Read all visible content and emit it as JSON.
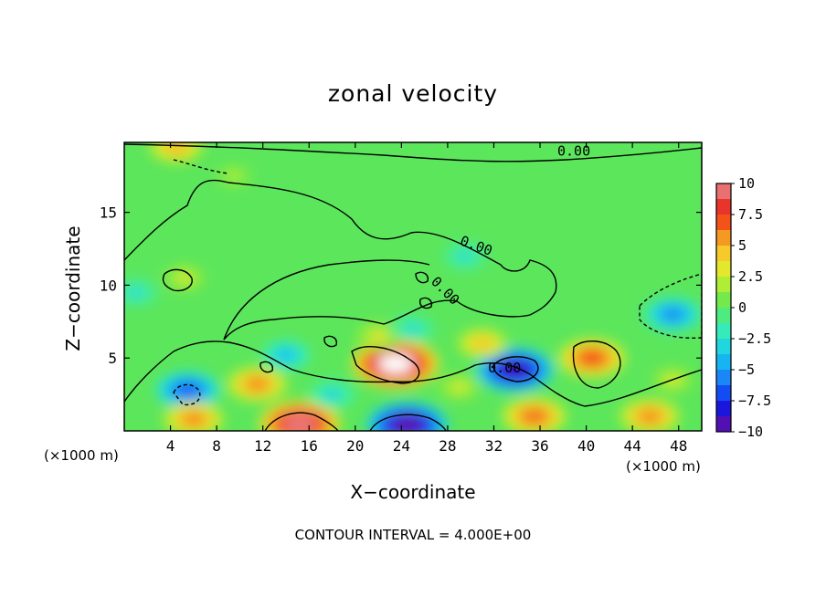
{
  "chart_data": {
    "type": "heatmap",
    "title": "zonal velocity",
    "xlabel": "X−coordinate",
    "ylabel": "Z−coordinate",
    "x_unit": "(×1000 m)",
    "y_unit": "(×1000 m)",
    "xlim": [
      0,
      50
    ],
    "ylim": [
      0,
      19.8
    ],
    "x_ticks": [
      4,
      8,
      12,
      16,
      20,
      24,
      28,
      32,
      36,
      40,
      44,
      48
    ],
    "y_ticks": [
      5,
      10,
      15
    ],
    "colorbar": {
      "ticks": [
        "10",
        "7.5",
        "5",
        "2.5",
        "0",
        "−2.5",
        "−5",
        "−7.5",
        "−10"
      ],
      "min": -10,
      "max": 10
    },
    "contour_labels": [
      "0.00",
      "0.00",
      "0.00",
      "0.00"
    ],
    "footnote": "CONTOUR INTERVAL = 4.000E+00",
    "features": [
      {
        "x": 23.5,
        "z": 4.6,
        "value": 10.5
      },
      {
        "x": 15.2,
        "z": 0.5,
        "value": 9.5
      },
      {
        "x": 24.5,
        "z": 0.4,
        "value": -9.5
      },
      {
        "x": 33.8,
        "z": 4.2,
        "value": -9.0
      },
      {
        "x": 40.5,
        "z": 5.0,
        "value": 7.0
      },
      {
        "x": 45.5,
        "z": 1.0,
        "value": 6.0
      },
      {
        "x": 5.2,
        "z": 10.5,
        "value": 3.0
      },
      {
        "x": 47.5,
        "z": 8.0,
        "value": -5.5
      },
      {
        "x": 5.5,
        "z": 2.8,
        "value": -6.5
      },
      {
        "x": 35.5,
        "z": 1.0,
        "value": 6.5
      },
      {
        "x": 11.5,
        "z": 3.2,
        "value": 6.0
      },
      {
        "x": 14.0,
        "z": 5.2,
        "value": -4.0
      },
      {
        "x": 31.0,
        "z": 6.0,
        "value": 4.5
      },
      {
        "x": 22.0,
        "z": 6.5,
        "value": 3.5
      },
      {
        "x": 6.0,
        "z": 0.8,
        "value": 6.0
      },
      {
        "x": 29.0,
        "z": 3.0,
        "value": 3.0
      },
      {
        "x": 25.0,
        "z": 7.0,
        "value": -3.0
      },
      {
        "x": 9.5,
        "z": 17.5,
        "value": 2.0
      },
      {
        "x": 4.5,
        "z": 19.5,
        "value": 5.0
      },
      {
        "x": 29.5,
        "z": 12.0,
        "value": -3.0
      },
      {
        "x": 18.0,
        "z": 2.5,
        "value": -3.5
      },
      {
        "x": 1.0,
        "z": 9.5,
        "value": -3.0
      },
      {
        "x": 47.5,
        "z": 3.5,
        "value": 3.0
      }
    ]
  }
}
